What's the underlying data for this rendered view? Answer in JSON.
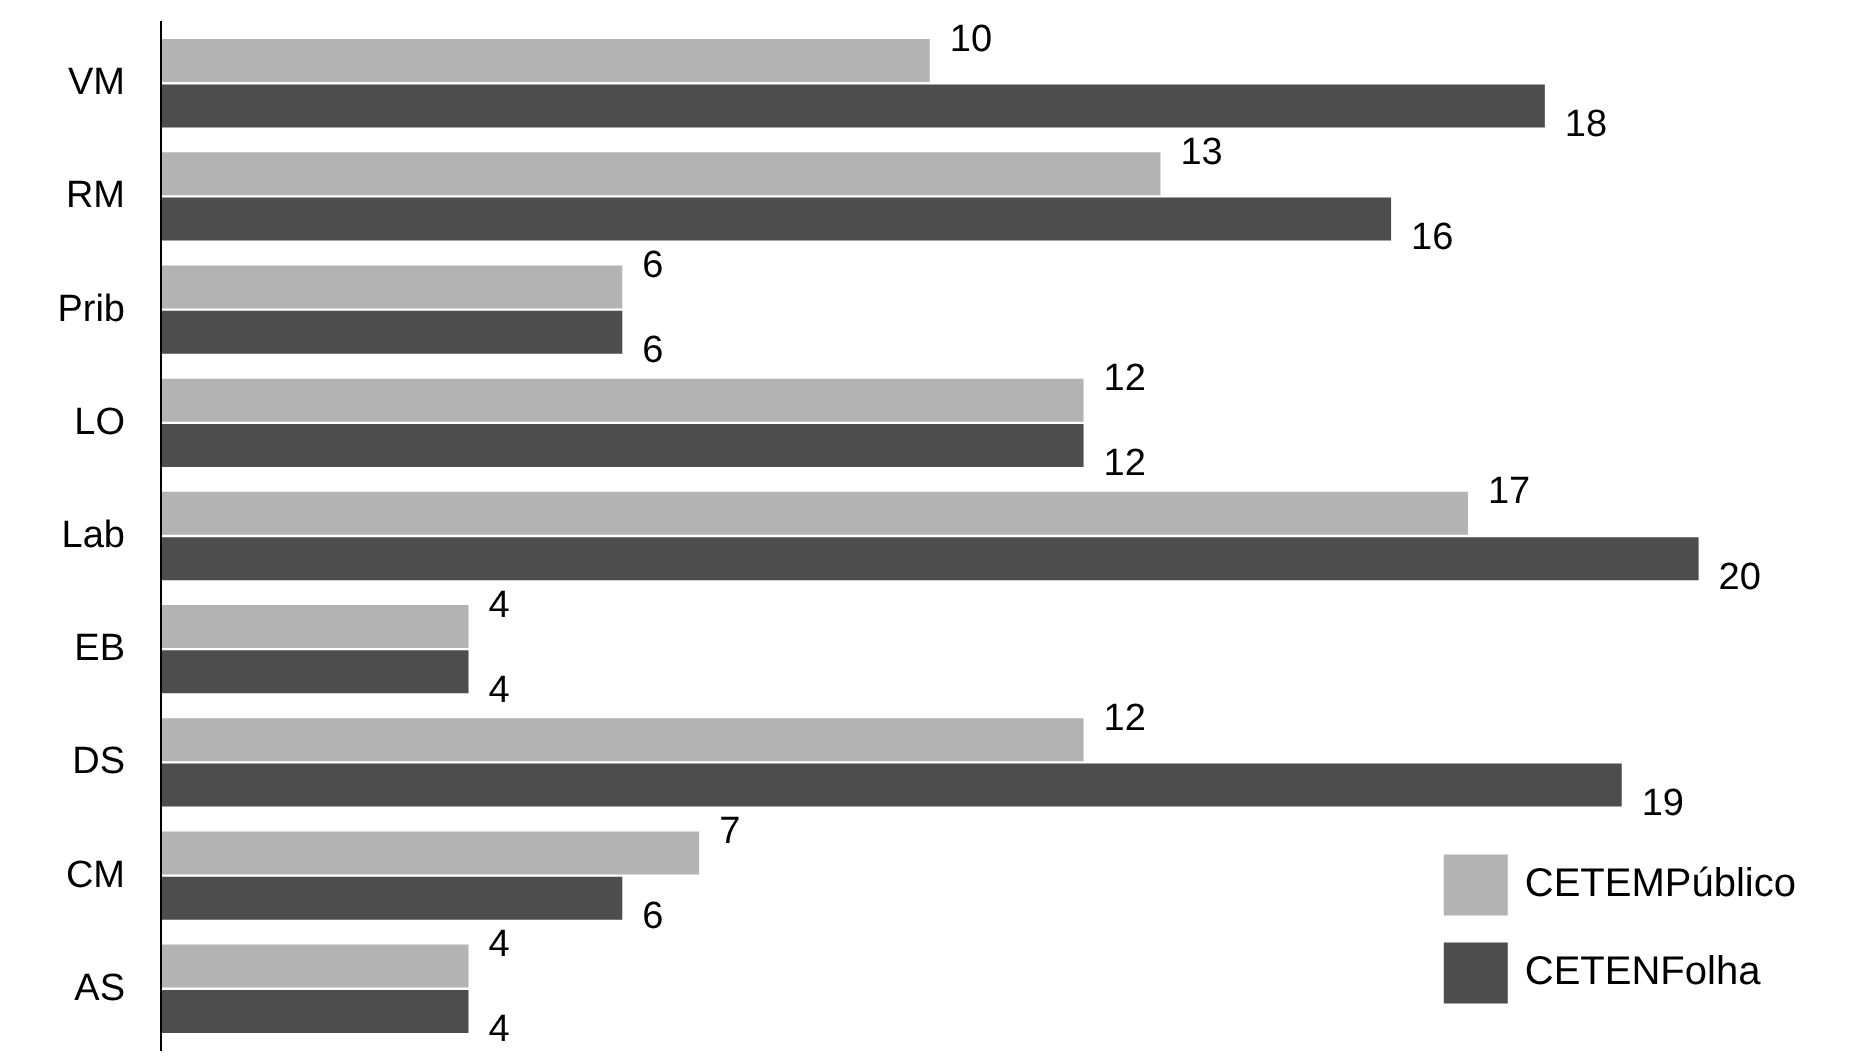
{
  "chart_data": {
    "type": "bar",
    "orientation": "horizontal",
    "categories": [
      "VM",
      "RM",
      "Prib",
      "LO",
      "Lab",
      "EB",
      "DS",
      "CM",
      "AS"
    ],
    "series": [
      {
        "name": "CETEMPúblico",
        "color": "#b3b3b3",
        "values": [
          10,
          13,
          6,
          12,
          17,
          4,
          12,
          7,
          4
        ]
      },
      {
        "name": "CETENFolha",
        "color": "#4d4d4d",
        "values": [
          18,
          16,
          6,
          12,
          20,
          4,
          19,
          6,
          4
        ]
      }
    ],
    "data_labels": true,
    "legend": "bottom right",
    "grid": false,
    "tick_labels": "y"
  }
}
